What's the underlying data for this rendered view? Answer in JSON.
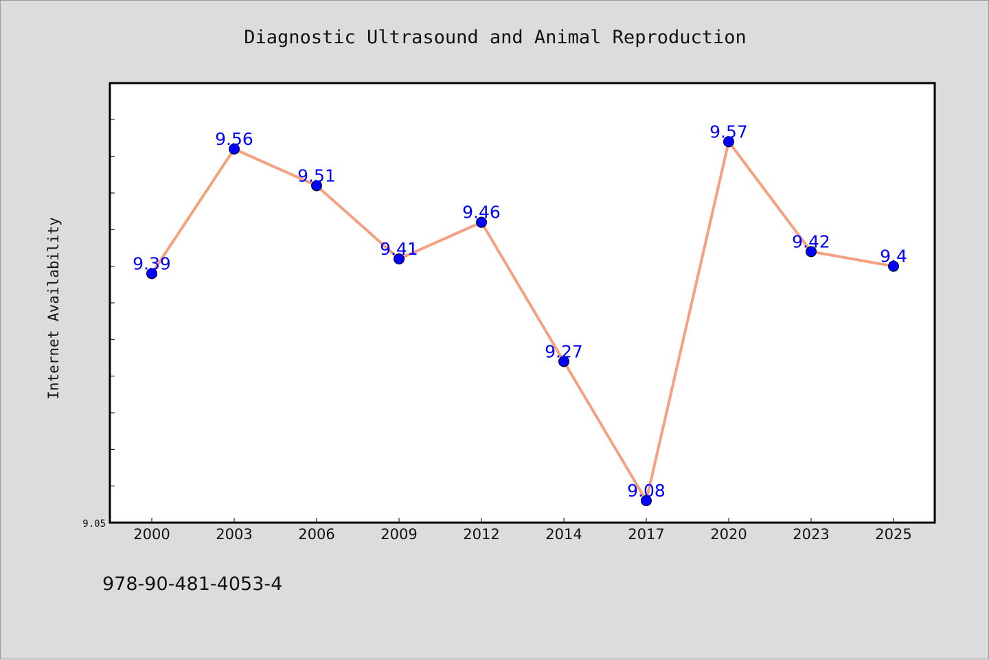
{
  "chart_data": {
    "type": "line",
    "title": "Diagnostic Ultrasound and Animal Reproduction",
    "xlabel": "",
    "ylabel": "Internet Availability",
    "categories": [
      "2000",
      "2003",
      "2006",
      "2009",
      "2012",
      "2014",
      "2017",
      "2020",
      "2023",
      "2025"
    ],
    "series": [
      {
        "values": [
          9.39,
          9.56,
          9.51,
          9.41,
          9.46,
          9.27,
          9.08,
          9.57,
          9.42,
          9.4
        ],
        "labels": [
          "9.39",
          "9.56",
          "9.51",
          "9.41",
          "9.46",
          "9.27",
          "9.08",
          "9.57",
          "9.42",
          "9.4"
        ]
      }
    ],
    "ylim": [
      9.05,
      9.65
    ],
    "y_tick_labels": [
      {
        "value": 9.05,
        "label": "9.05"
      }
    ],
    "y_minor_tick_step": 0.05,
    "grid": false,
    "legend": "none",
    "colors": {
      "line": "#f5a07f",
      "marker": "#0000ff",
      "data_label": "#0000ff",
      "plot_background": "#ffffff",
      "figure_background": "#dcdcdc"
    }
  },
  "footer": {
    "isbn": "978-90-481-4053-4"
  }
}
